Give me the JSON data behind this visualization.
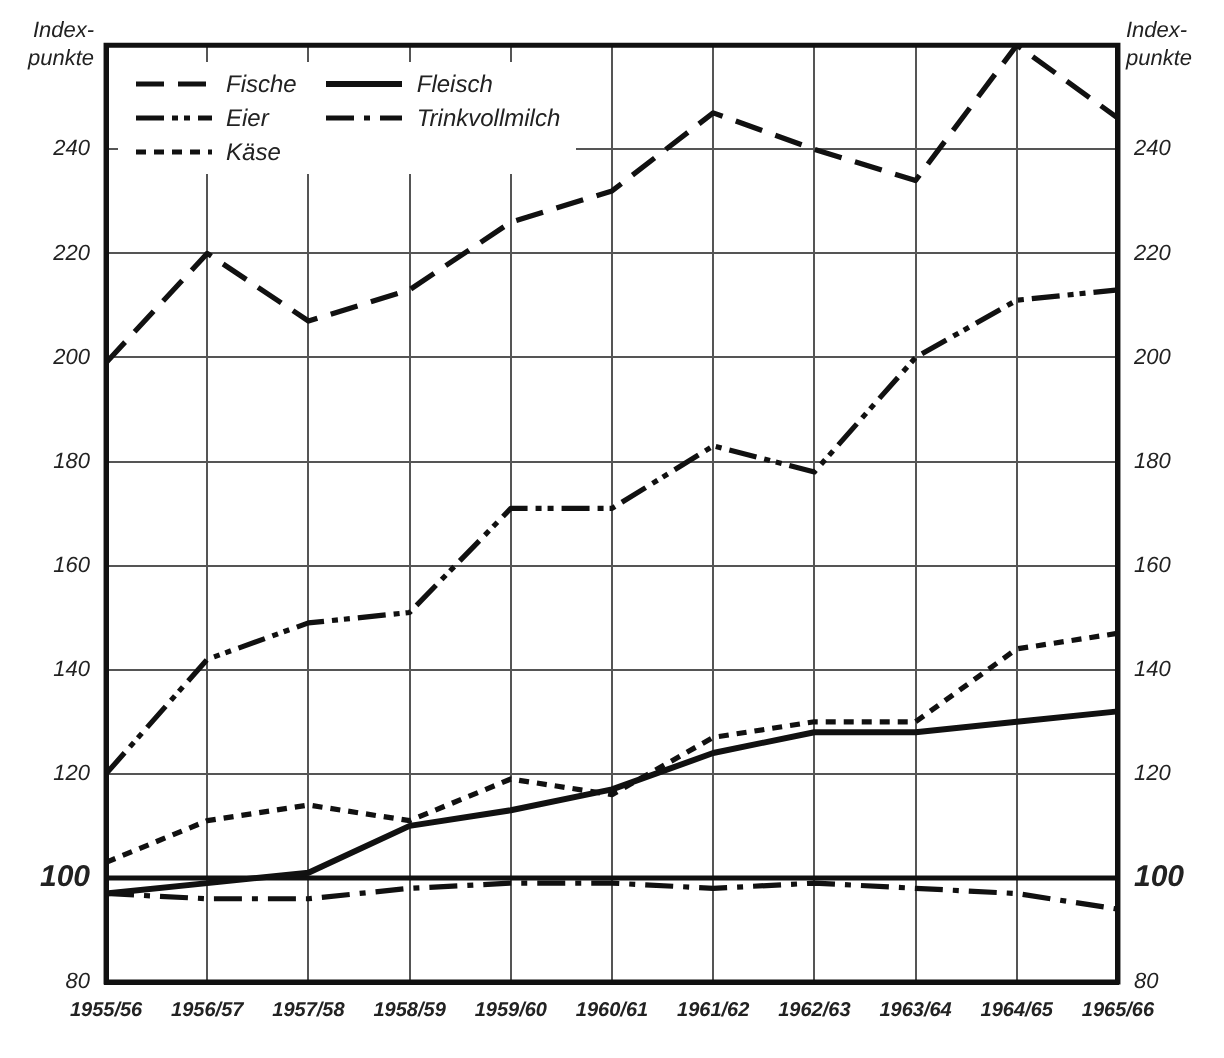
{
  "chart_data": {
    "type": "line",
    "ylabel": "Index-punkte",
    "y2label": "Index-punkte",
    "categories": [
      "1955/56",
      "1956/57",
      "1957/58",
      "1958/59",
      "1959/60",
      "1960/61",
      "1961/62",
      "1962/63",
      "1963/64",
      "1964/65",
      "1965/66"
    ],
    "series": [
      {
        "name": "Fische",
        "color": "#111111",
        "line_style": "dashed",
        "values": [
          199,
          220,
          207,
          213,
          226,
          232,
          247,
          240,
          234,
          260,
          246
        ]
      },
      {
        "name": "Fleisch",
        "color": "#111111",
        "line_style": "solid",
        "values": [
          97,
          99,
          101,
          110,
          113,
          117,
          124,
          128,
          128,
          130,
          132
        ]
      },
      {
        "name": "Eier",
        "color": "#111111",
        "line_style": "dashdotdot",
        "values": [
          120,
          142,
          149,
          151,
          171,
          171,
          183,
          178,
          200,
          211,
          213
        ]
      },
      {
        "name": "Trinkvollmilch",
        "color": "#111111",
        "line_style": "dashdot",
        "values": [
          97,
          96,
          96,
          98,
          99,
          99,
          98,
          99,
          98,
          97,
          94
        ]
      },
      {
        "name": "Käse",
        "color": "#111111",
        "line_style": "dotted",
        "values": [
          103,
          111,
          114,
          111,
          119,
          116,
          127,
          130,
          130,
          144,
          147
        ]
      }
    ],
    "ylim": [
      80,
      260
    ],
    "yticks": [
      80,
      100,
      120,
      140,
      160,
      180,
      200,
      220,
      240
    ],
    "y2lim": [
      80,
      260
    ],
    "y2ticks": [
      80,
      100,
      120,
      140,
      160,
      180,
      200,
      220,
      240
    ],
    "ref_lines": [
      {
        "axis": "y",
        "value": 100,
        "color": "#111111"
      }
    ],
    "grid": true,
    "legend": "top left",
    "marker": "none"
  }
}
